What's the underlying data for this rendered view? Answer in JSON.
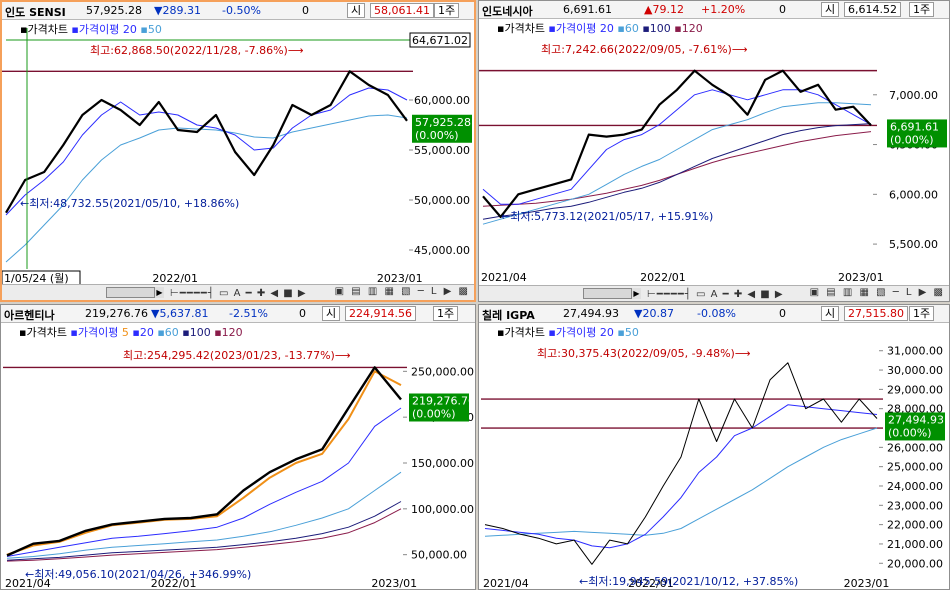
{
  "panels": [
    {
      "id": "india",
      "header": {
        "name": "인도 SENSI",
        "price": "57,925.28",
        "change": "▼289.31",
        "pct": "-0.50%",
        "volume": "0",
        "open_label": "시",
        "open": "58,061.41",
        "period": "1주"
      },
      "chart_label": "가격차트",
      "ma_label": "가격이평",
      "ma_periods": [
        "20",
        "50"
      ],
      "high_label": "최고:62,868.50(2022/11/28, -7.86%)",
      "low_label": "←최저:48,732.55(2021/05/10, +18.86%)",
      "cursor_value": "64,671.02",
      "cursor_date": "1/05/24 (월)",
      "current_price": "57,925.28",
      "current_pct": "(0.00%)",
      "x_labels": [
        "2022/01",
        "2023/01"
      ],
      "y_labels": [
        "60,000.00",
        "55,000.00",
        "50,000.00",
        "45,000.00"
      ]
    },
    {
      "id": "indonesia",
      "header": {
        "name": "인도네시아",
        "price": "6,691.61",
        "change": "▲79.12",
        "pct": "+1.20%",
        "volume": "0",
        "open_label": "시",
        "open": "6,614.52",
        "period": "1주"
      },
      "chart_label": "가격차트",
      "ma_label": "가격이평",
      "ma_periods": [
        "20",
        "60",
        "100",
        "120"
      ],
      "high_label": "최고:7,242.66(2022/09/05, -7.61%)",
      "low_label": "←최저:5,773.12(2021/05/17, +15.91%)",
      "current_price": "6,691.61",
      "current_pct": "(0.00%)",
      "x_labels": [
        "2021/04",
        "2022/01",
        "2023/01"
      ],
      "y_labels": [
        "7,000.00",
        "6,500.00",
        "6,000.00",
        "5,500.00"
      ]
    },
    {
      "id": "argentina",
      "header": {
        "name": "아르헨티나",
        "price": "219,276.76",
        "change": "▼5,637.81",
        "pct": "-2.51%",
        "volume": "0",
        "open_label": "시",
        "open": "224,914.56",
        "period": "1주"
      },
      "chart_label": "가격차트",
      "ma_label": "가격이평",
      "ma_periods": [
        "5",
        "20",
        "60",
        "100",
        "120"
      ],
      "high_label": "최고:254,295.42(2023/01/23, -13.77%)",
      "low_label": "←최저:49,056.10(2021/04/26, +346.99%)",
      "current_price": "219,276.76",
      "current_pct": "(0.00%)",
      "x_labels": [
        "2021/04",
        "2022/01",
        "2023/01"
      ],
      "y_labels": [
        "250,000.00",
        "200,000.00",
        "150,000.00",
        "100,000.00",
        "50,000.00"
      ]
    },
    {
      "id": "chile",
      "header": {
        "name": "칠레 IGPA",
        "price": "27,494.93",
        "change": "▼20.87",
        "pct": "-0.08%",
        "volume": "0",
        "open_label": "시",
        "open": "27,515.80",
        "period": "1주"
      },
      "chart_label": "가격차트",
      "ma_label": "가격이평",
      "ma_periods": [
        "20",
        "50"
      ],
      "high_label": "최고:30,375.43(2022/09/05, -9.48%)",
      "low_label": "←최저:19,945.59(2021/10/12, +37.85%)",
      "current_price": "27,494.93",
      "current_pct": "(0.00%)",
      "x_labels": [
        "2021/04",
        "2022/01",
        "2023/01"
      ],
      "y_labels": [
        "31,000.00",
        "30,000.00",
        "29,000.00",
        "28,000.00",
        "27,000.00",
        "26,000.00",
        "25,000.00",
        "24,000.00",
        "23,000.00",
        "22,000.00",
        "21,000.00",
        "20,000.00"
      ]
    }
  ],
  "toolbar": {
    "timeline_glyphs": "⊢━━━━┤ ▭ A ━ ✚ ◀ ■ ▶",
    "icon_glyphs": "▣ ▤ ▥ ▦ ▧ ─ L ▶ ▩"
  },
  "colors": {
    "price": "#000000",
    "ma_a": "#2c2cff",
    "ma_b": "#4aa0d8",
    "ma_c": "#1c1c7a",
    "ma_d": "#8a1c4a",
    "ma_short": "#f09018",
    "hline": "#7a1030",
    "badge": "#009000",
    "label_red": "#c00000",
    "label_blue": "#001c9a"
  },
  "chart_data": [
    {
      "type": "line",
      "title": "인도 SENSI",
      "x": [
        "2021-05-10",
        "2021-06",
        "2021-07",
        "2021-08",
        "2021-09",
        "2021-10",
        "2021-11",
        "2021-12",
        "2022-01",
        "2022-02",
        "2022-03",
        "2022-04",
        "2022-05",
        "2022-06",
        "2022-07",
        "2022-08",
        "2022-09",
        "2022-10",
        "2022-11",
        "2022-12",
        "2023-01",
        "2023-02"
      ],
      "series": [
        {
          "name": "가격",
          "values": [
            48733,
            52000,
            52800,
            55500,
            58500,
            60000,
            59000,
            57500,
            59800,
            57000,
            56800,
            58500,
            54800,
            52500,
            55500,
            59500,
            58500,
            59500,
            62868,
            61500,
            60500,
            57925
          ]
        },
        {
          "name": "20",
          "values": [
            48500,
            50500,
            52000,
            53800,
            56500,
            58500,
            59800,
            58500,
            58800,
            58500,
            57500,
            57200,
            56500,
            55000,
            55200,
            57200,
            58500,
            59000,
            60500,
            61200,
            61000,
            60000
          ]
        },
        {
          "name": "50",
          "values": [
            43800,
            45500,
            47500,
            49500,
            52000,
            54000,
            55500,
            56200,
            57000,
            57200,
            57100,
            57000,
            56700,
            56300,
            56200,
            56800,
            57200,
            57600,
            58000,
            58400,
            58500,
            58200
          ]
        }
      ],
      "high": 62868.5,
      "low": 48732.55,
      "hlines": [
        62868.5
      ],
      "ylim": [
        43500,
        65200
      ]
    },
    {
      "type": "line",
      "title": "인도네시아",
      "x": [
        "2021-04",
        "2021-05-17",
        "2021-06",
        "2021-07",
        "2021-08",
        "2021-09",
        "2021-10",
        "2021-11",
        "2021-12",
        "2022-01",
        "2022-02",
        "2022-03",
        "2022-04",
        "2022-05",
        "2022-06",
        "2022-07",
        "2022-08",
        "2022-09",
        "2022-10",
        "2022-11",
        "2022-12",
        "2023-01",
        "2023-02"
      ],
      "series": [
        {
          "name": "가격",
          "values": [
            5980,
            5773,
            6000,
            6050,
            6100,
            6150,
            6600,
            6580,
            6600,
            6650,
            6900,
            7050,
            7242,
            7100,
            6990,
            6800,
            7150,
            7242,
            7030,
            7100,
            6850,
            6880,
            6692
          ]
        },
        {
          "name": "20",
          "values": [
            6050,
            5900,
            5900,
            5950,
            6000,
            6050,
            6250,
            6450,
            6550,
            6600,
            6700,
            6850,
            7000,
            7050,
            7000,
            6950,
            7000,
            7050,
            7050,
            7000,
            6900,
            6800,
            6700
          ]
        },
        {
          "name": "60",
          "values": [
            5700,
            5750,
            5800,
            5850,
            5900,
            5950,
            6000,
            6100,
            6200,
            6280,
            6350,
            6450,
            6550,
            6650,
            6700,
            6750,
            6820,
            6880,
            6900,
            6920,
            6920,
            6910,
            6900
          ]
        },
        {
          "name": "100",
          "values": [
            5750,
            5780,
            5800,
            5830,
            5860,
            5880,
            5920,
            5970,
            6020,
            6060,
            6120,
            6200,
            6280,
            6360,
            6420,
            6480,
            6540,
            6600,
            6640,
            6670,
            6690,
            6700,
            6710
          ]
        },
        {
          "name": "120",
          "values": [
            5880,
            5890,
            5900,
            5910,
            5930,
            5950,
            5980,
            6010,
            6050,
            6090,
            6140,
            6200,
            6260,
            6320,
            6370,
            6410,
            6450,
            6490,
            6530,
            6560,
            6590,
            6610,
            6630
          ]
        }
      ],
      "high": 7242.66,
      "low": 5773.12,
      "hlines": [
        7242.66,
        6691.61
      ],
      "ylim": [
        5300,
        7480
      ]
    },
    {
      "type": "line",
      "title": "아르헨티나",
      "x": [
        "2021-04-26",
        "2021-06",
        "2021-08",
        "2021-10",
        "2021-12",
        "2022-01",
        "2022-03",
        "2022-05",
        "2022-07",
        "2022-08",
        "2022-09",
        "2022-10",
        "2022-11",
        "2022-12",
        "2023-01-23",
        "2023-02"
      ],
      "series": [
        {
          "name": "가격",
          "values": [
            49056,
            62000,
            65000,
            76000,
            83000,
            86000,
            89000,
            90000,
            94000,
            120000,
            140000,
            154000,
            165000,
            210000,
            254295,
            219277
          ]
        },
        {
          "name": "5",
          "values": [
            50000,
            60000,
            64000,
            74000,
            82000,
            85000,
            88000,
            89000,
            92000,
            112000,
            134000,
            150000,
            160000,
            198000,
            250000,
            235000
          ]
        },
        {
          "name": "20",
          "values": [
            48000,
            53000,
            58000,
            63000,
            68000,
            70000,
            73000,
            76000,
            80000,
            90000,
            105000,
            118000,
            130000,
            150000,
            190000,
            210000
          ]
        },
        {
          "name": "60",
          "values": [
            46000,
            48000,
            51000,
            55000,
            58000,
            60000,
            62000,
            64000,
            66000,
            70000,
            75000,
            82000,
            90000,
            100000,
            120000,
            140000
          ]
        },
        {
          "name": "100",
          "values": [
            44000,
            45500,
            47000,
            49500,
            52000,
            53500,
            55000,
            56500,
            58000,
            61000,
            64000,
            68000,
            73000,
            80000,
            92000,
            108000
          ]
        },
        {
          "name": "120",
          "values": [
            43000,
            44000,
            45500,
            47500,
            49500,
            51000,
            52500,
            54000,
            55500,
            58000,
            61000,
            64000,
            68000,
            74000,
            85000,
            100000
          ]
        }
      ],
      "high": 254295.42,
      "low": 49056.1,
      "hlines": [
        254295.42
      ],
      "ylim": [
        30000,
        270000
      ]
    },
    {
      "type": "line",
      "title": "칠레 IGPA",
      "x": [
        "2021-04",
        "2021-05",
        "2021-06",
        "2021-07",
        "2021-08",
        "2021-09",
        "2021-10-12",
        "2021-11",
        "2021-12",
        "2022-01",
        "2022-02",
        "2022-03",
        "2022-04",
        "2022-05",
        "2022-06",
        "2022-07",
        "2022-08",
        "2022-09",
        "2022-10",
        "2022-11",
        "2022-12",
        "2023-01",
        "2023-02"
      ],
      "series": [
        {
          "name": "가격",
          "values": [
            22000,
            21800,
            21500,
            21300,
            21000,
            21200,
            19946,
            21200,
            21000,
            22400,
            24000,
            25500,
            28500,
            26300,
            28500,
            27000,
            29500,
            30375,
            28000,
            28500,
            27300,
            28500,
            27495
          ]
        },
        {
          "name": "20",
          "values": [
            21800,
            21700,
            21600,
            21500,
            21300,
            21200,
            20900,
            20800,
            21000,
            21500,
            22400,
            23400,
            24700,
            25500,
            26600,
            27000,
            27600,
            28200,
            28100,
            28000,
            27900,
            27800,
            27700
          ]
        },
        {
          "name": "50",
          "values": [
            21400,
            21450,
            21500,
            21550,
            21600,
            21650,
            21600,
            21550,
            21500,
            21450,
            21550,
            21800,
            22300,
            22800,
            23300,
            23800,
            24400,
            25000,
            25500,
            26000,
            26400,
            26700,
            27000
          ]
        }
      ],
      "high": 30375.43,
      "low": 19945.59,
      "hlines": [
        28500,
        27000
      ],
      "ylim": [
        19600,
        31400
      ]
    }
  ]
}
